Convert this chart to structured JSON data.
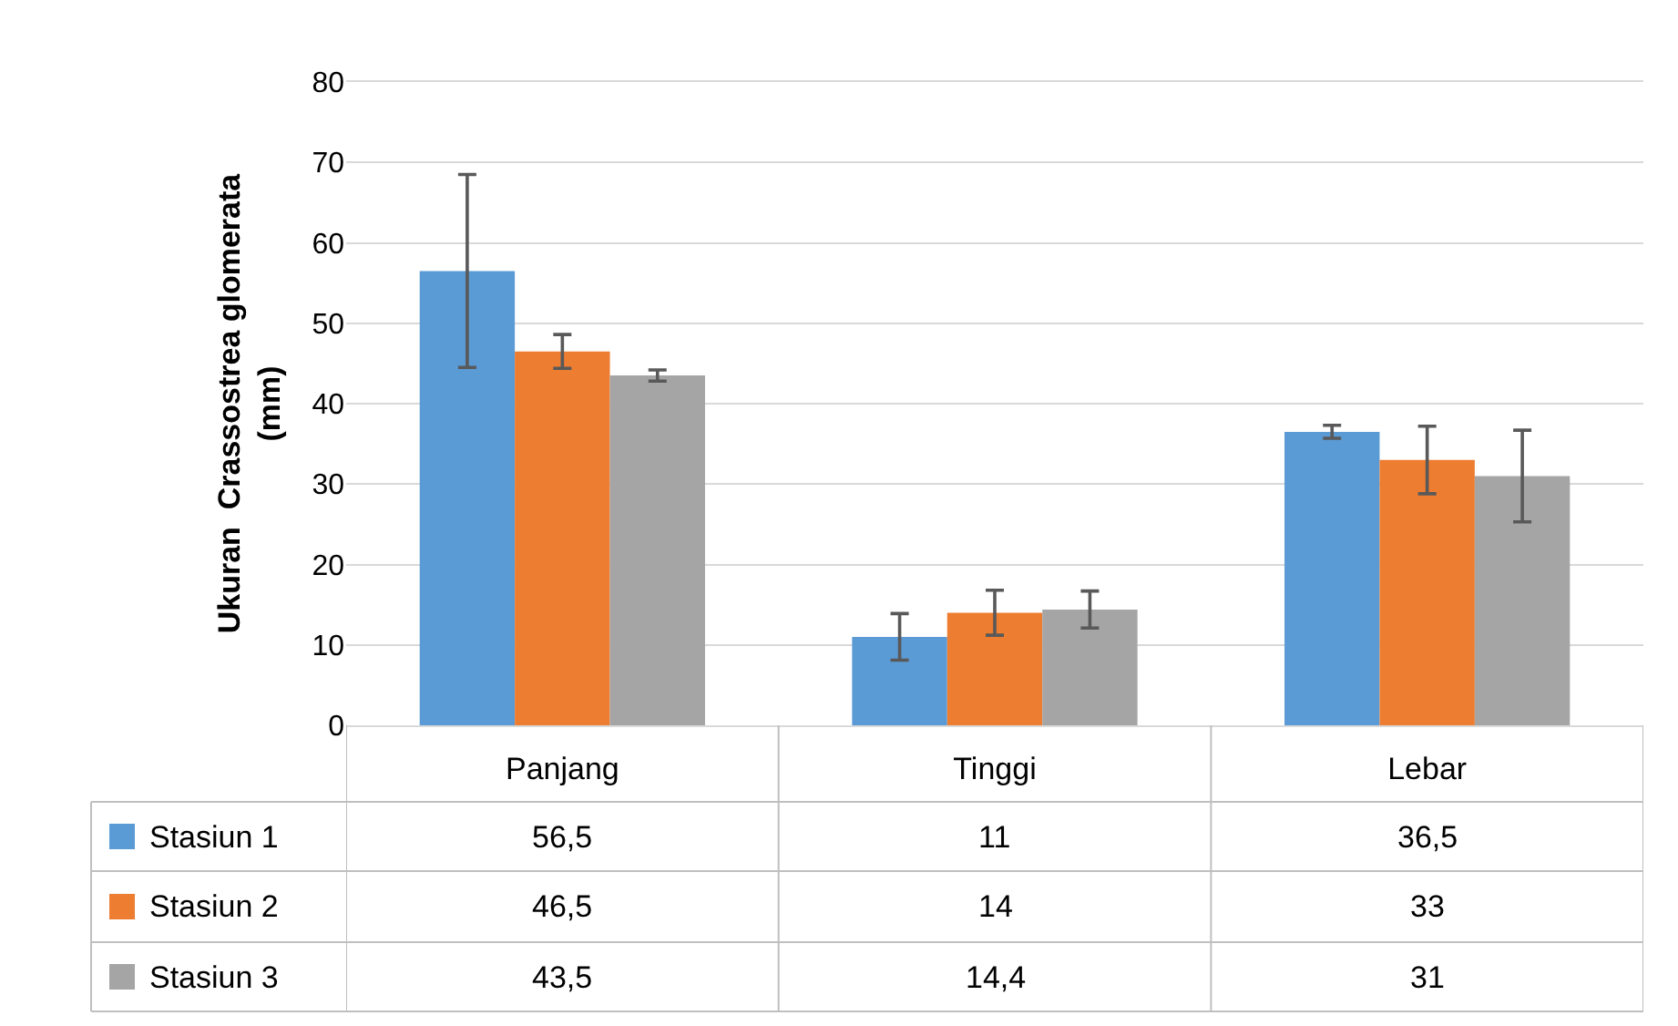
{
  "chart_data": {
    "type": "bar",
    "ylabel": "Ukuran  Crassostrea glomerata (mm)",
    "categories": [
      "Panjang",
      "Tinggi",
      "Lebar"
    ],
    "series": [
      {
        "name": "Stasiun 1",
        "color": "#5b9bd5",
        "values": [
          56.5,
          11,
          36.5
        ],
        "errors": [
          12,
          2.9,
          0.8
        ],
        "value_labels": [
          "56,5",
          "11",
          "36,5"
        ]
      },
      {
        "name": "Stasiun 2",
        "color": "#ed7d31",
        "values": [
          46.5,
          14,
          33
        ],
        "errors": [
          2.1,
          2.8,
          4.2
        ],
        "value_labels": [
          "46,5",
          "14",
          "33"
        ]
      },
      {
        "name": "Stasiun 3",
        "color": "#a5a5a5",
        "values": [
          43.5,
          14.4,
          31
        ],
        "errors": [
          0.7,
          2.3,
          5.7
        ],
        "value_labels": [
          "43,5",
          "14,4",
          "31"
        ]
      }
    ],
    "ylim": [
      0,
      80
    ],
    "yticks": [
      0,
      10,
      20,
      30,
      40,
      50,
      60,
      70,
      80
    ],
    "grid": "y",
    "legend": "bottom left"
  }
}
